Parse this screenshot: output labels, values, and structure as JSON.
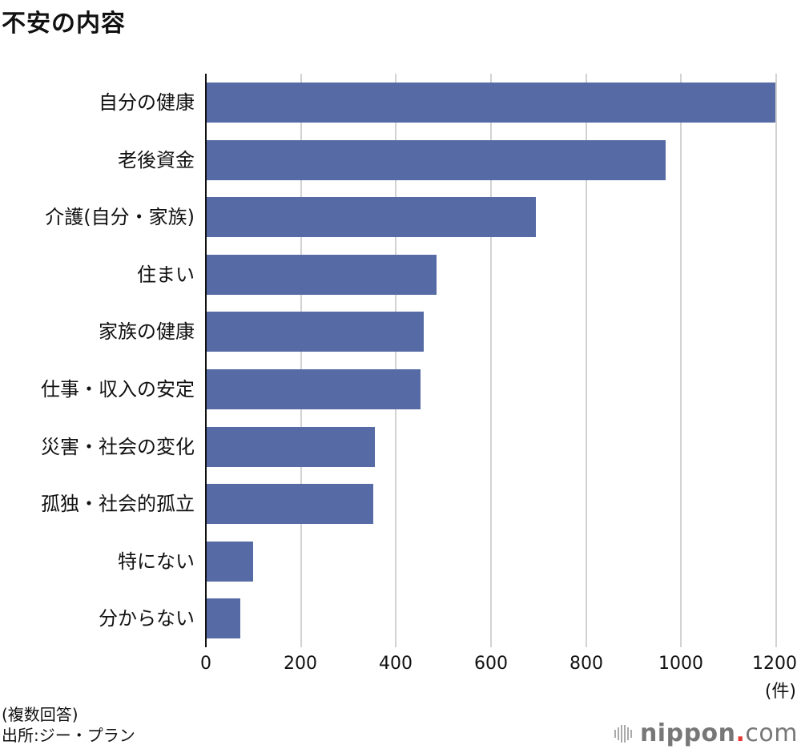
{
  "title": "不安の内容",
  "chart_data": {
    "type": "bar",
    "orientation": "horizontal",
    "title": "不安の内容",
    "xlabel": "(件)",
    "ylabel": "",
    "xlim": [
      0,
      1200
    ],
    "xticks": [
      0,
      200,
      400,
      600,
      800,
      1000,
      1200
    ],
    "grid": true,
    "categories": [
      "自分の健康",
      "老後資金",
      "介護(自分・家族)",
      "住まい",
      "家族の健康",
      "仕事・収入の安定",
      "災害・社会の変化",
      "孤独・社会的孤立",
      "特にない",
      "分からない"
    ],
    "values": [
      1198,
      968,
      694,
      486,
      458,
      451,
      355,
      352,
      100,
      73
    ],
    "color": "#566ba5"
  },
  "axis": {
    "ticks": [
      "0",
      "200",
      "400",
      "600",
      "800",
      "1000",
      "1200"
    ],
    "unit": "(件)"
  },
  "notes": {
    "multiple": "(複数回答)",
    "source": "出所:ジー・プラン"
  },
  "logo": {
    "name": "nippon",
    "dot": ".",
    "tld": "com"
  }
}
